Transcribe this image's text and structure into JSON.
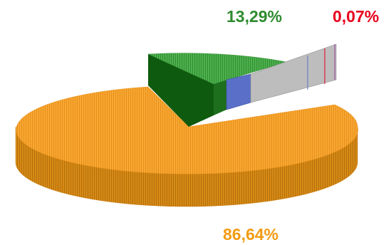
{
  "chart_data": {
    "type": "pie",
    "title": "",
    "slices": [
      {
        "label": "86,64%",
        "value": 86.64,
        "color": "#F39C12"
      },
      {
        "label": "13,29%",
        "value": 13.29,
        "color": "#2E8B2E"
      },
      {
        "label": "0,07%",
        "value": 0.07,
        "color": "#E8001C"
      }
    ],
    "three_d": true,
    "exploded_slices": [
      "13,29%",
      "0,07%"
    ],
    "legend": "none",
    "colors": {
      "orange_top": "#F7A733",
      "orange_side": "#C97F12",
      "green_top": "#3FA33F",
      "green_side": "#0E5A0E",
      "gray_bar": "#BDBDBD",
      "blue_bar": "#5A6FC8",
      "label_orange": "#F39C12",
      "label_green": "#2E8B2E",
      "label_red": "#E8001C"
    }
  }
}
